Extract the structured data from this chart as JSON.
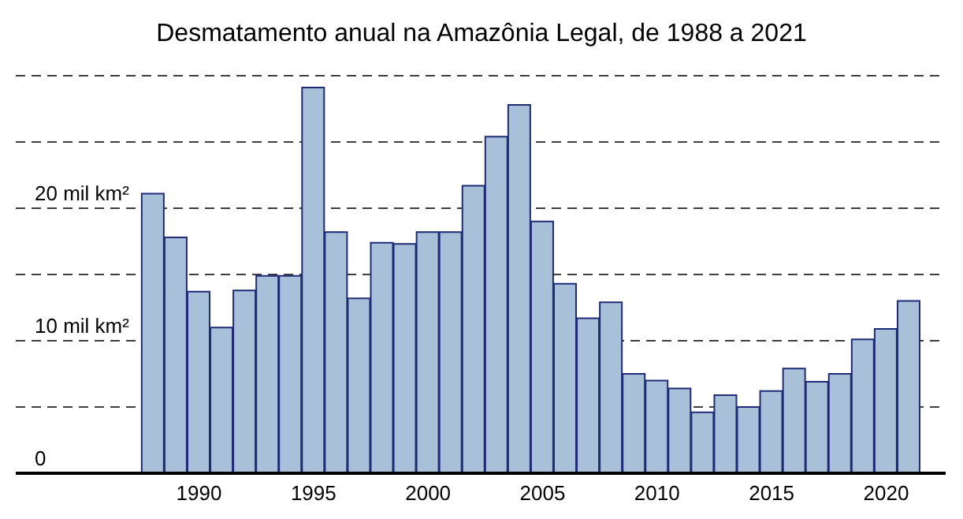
{
  "chart_data": {
    "type": "bar",
    "title": "Desmatamento anual na Amazônia Legal, de 1988 a 2021",
    "x": [
      1988,
      1989,
      1990,
      1991,
      1992,
      1993,
      1994,
      1995,
      1996,
      1997,
      1998,
      1999,
      2000,
      2001,
      2002,
      2003,
      2004,
      2005,
      2006,
      2007,
      2008,
      2009,
      2010,
      2011,
      2012,
      2013,
      2014,
      2015,
      2016,
      2017,
      2018,
      2019,
      2020,
      2021
    ],
    "values": [
      21.1,
      17.8,
      13.7,
      11.0,
      13.8,
      14.9,
      14.9,
      29.1,
      18.2,
      13.2,
      17.4,
      17.3,
      18.2,
      18.2,
      21.7,
      25.4,
      27.8,
      19.0,
      14.3,
      11.7,
      12.9,
      7.5,
      7.0,
      6.4,
      4.6,
      5.9,
      5.0,
      6.2,
      7.9,
      6.9,
      7.5,
      10.1,
      10.9,
      13.0
    ],
    "color": "#a8c0d8",
    "xlim": [
      1982,
      2022.6
    ],
    "xticks": [
      1990,
      1995,
      2000,
      2005,
      2010,
      2015,
      2020
    ],
    "ylim": [
      0,
      30
    ],
    "yticks": [
      0,
      {
        "value": 5,
        "label": null
      },
      {
        "value": 10,
        "label": "10 mil km²"
      },
      {
        "value": 15,
        "label": null
      },
      {
        "value": 20,
        "label": "20 mil km²"
      },
      {
        "value": 25,
        "label": null
      }
    ],
    "grid": "y"
  }
}
